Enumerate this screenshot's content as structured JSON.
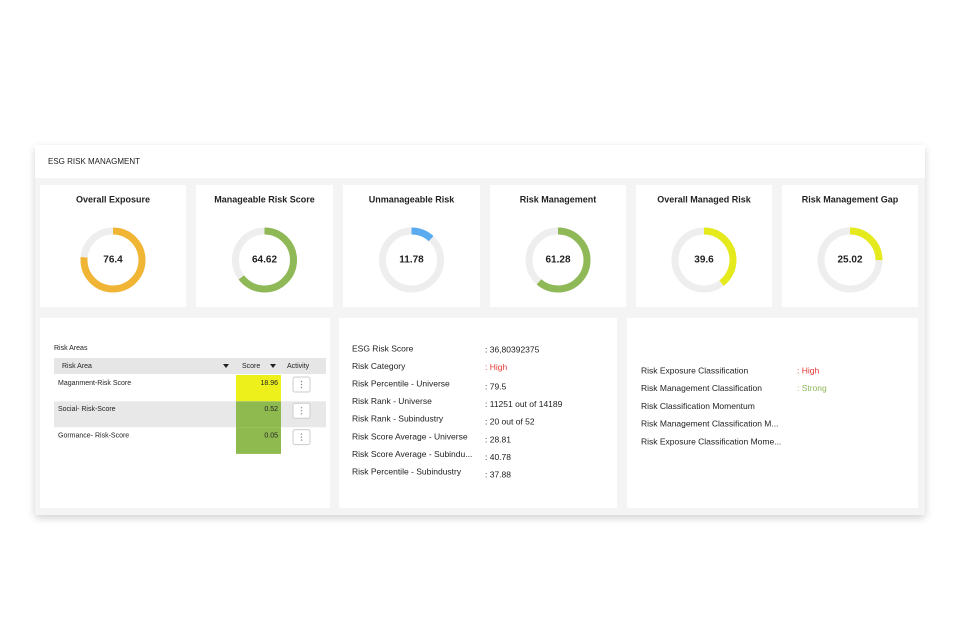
{
  "header": {
    "title": "ESG RISK MANAGMENT"
  },
  "gauge_range": [
    0,
    100
  ],
  "gauges": [
    {
      "title": "Overall Exposure",
      "value": 76.4,
      "color": "#f0b534"
    },
    {
      "title": "Manageable Risk Score",
      "value": 64.62,
      "color": "#8fb857"
    },
    {
      "title": "Unmanageable Risk",
      "value": 11.78,
      "color": "#5aaaf0"
    },
    {
      "title": "Risk Management",
      "value": 61.28,
      "color": "#8fb857"
    },
    {
      "title": "Overall Managed Risk",
      "value": 39.6,
      "color": "#e4ea1c"
    },
    {
      "title": "Risk Management Gap",
      "value": 25.02,
      "color": "#e4ea1c"
    }
  ],
  "risk_areas": {
    "title": "Risk Areas",
    "columns": [
      "Risk Area",
      "Score",
      "Activity"
    ],
    "rows": [
      {
        "name": "Maganment-Risk Score",
        "score": 18.96,
        "color": "#eef01c"
      },
      {
        "name": "Social- Risk-Score",
        "score": 0.52,
        "color": "#8fba50"
      },
      {
        "name": "Gormance- Risk-Score",
        "score": 0.05,
        "color": "#8fba50"
      }
    ]
  },
  "scores": [
    {
      "label": "ESG Risk Score",
      "value": ": 36,80392375"
    },
    {
      "label": "Risk Category",
      "value": ": High",
      "color": "#e53935"
    },
    {
      "label": "Risk Percentile - Universe",
      "value": ": 79.5"
    },
    {
      "label": "Risk Rank - Universe",
      "value": ": 11251 out of 14189"
    },
    {
      "label": "Risk Rank - Subindustry",
      "value": ": 20 out of 52"
    },
    {
      "label": "Risk Score Average - Universe",
      "value": ": 28.81"
    },
    {
      "label": "Risk Score Average - Subindu...",
      "value": ": 40.78"
    },
    {
      "label": "Risk Percentile - Subindustry",
      "value": ": 37.88"
    }
  ],
  "classifications": [
    {
      "label": "Risk Exposure Classification",
      "value": ": High",
      "color": "#e53935"
    },
    {
      "label": "Risk Management Classification",
      "value": ": Strong",
      "color": "#8fb857"
    },
    {
      "label": "Risk Classification Momentum"
    },
    {
      "label": "Risk Management Classification M..."
    },
    {
      "label": "Risk Exposure Classification Mome..."
    }
  ]
}
